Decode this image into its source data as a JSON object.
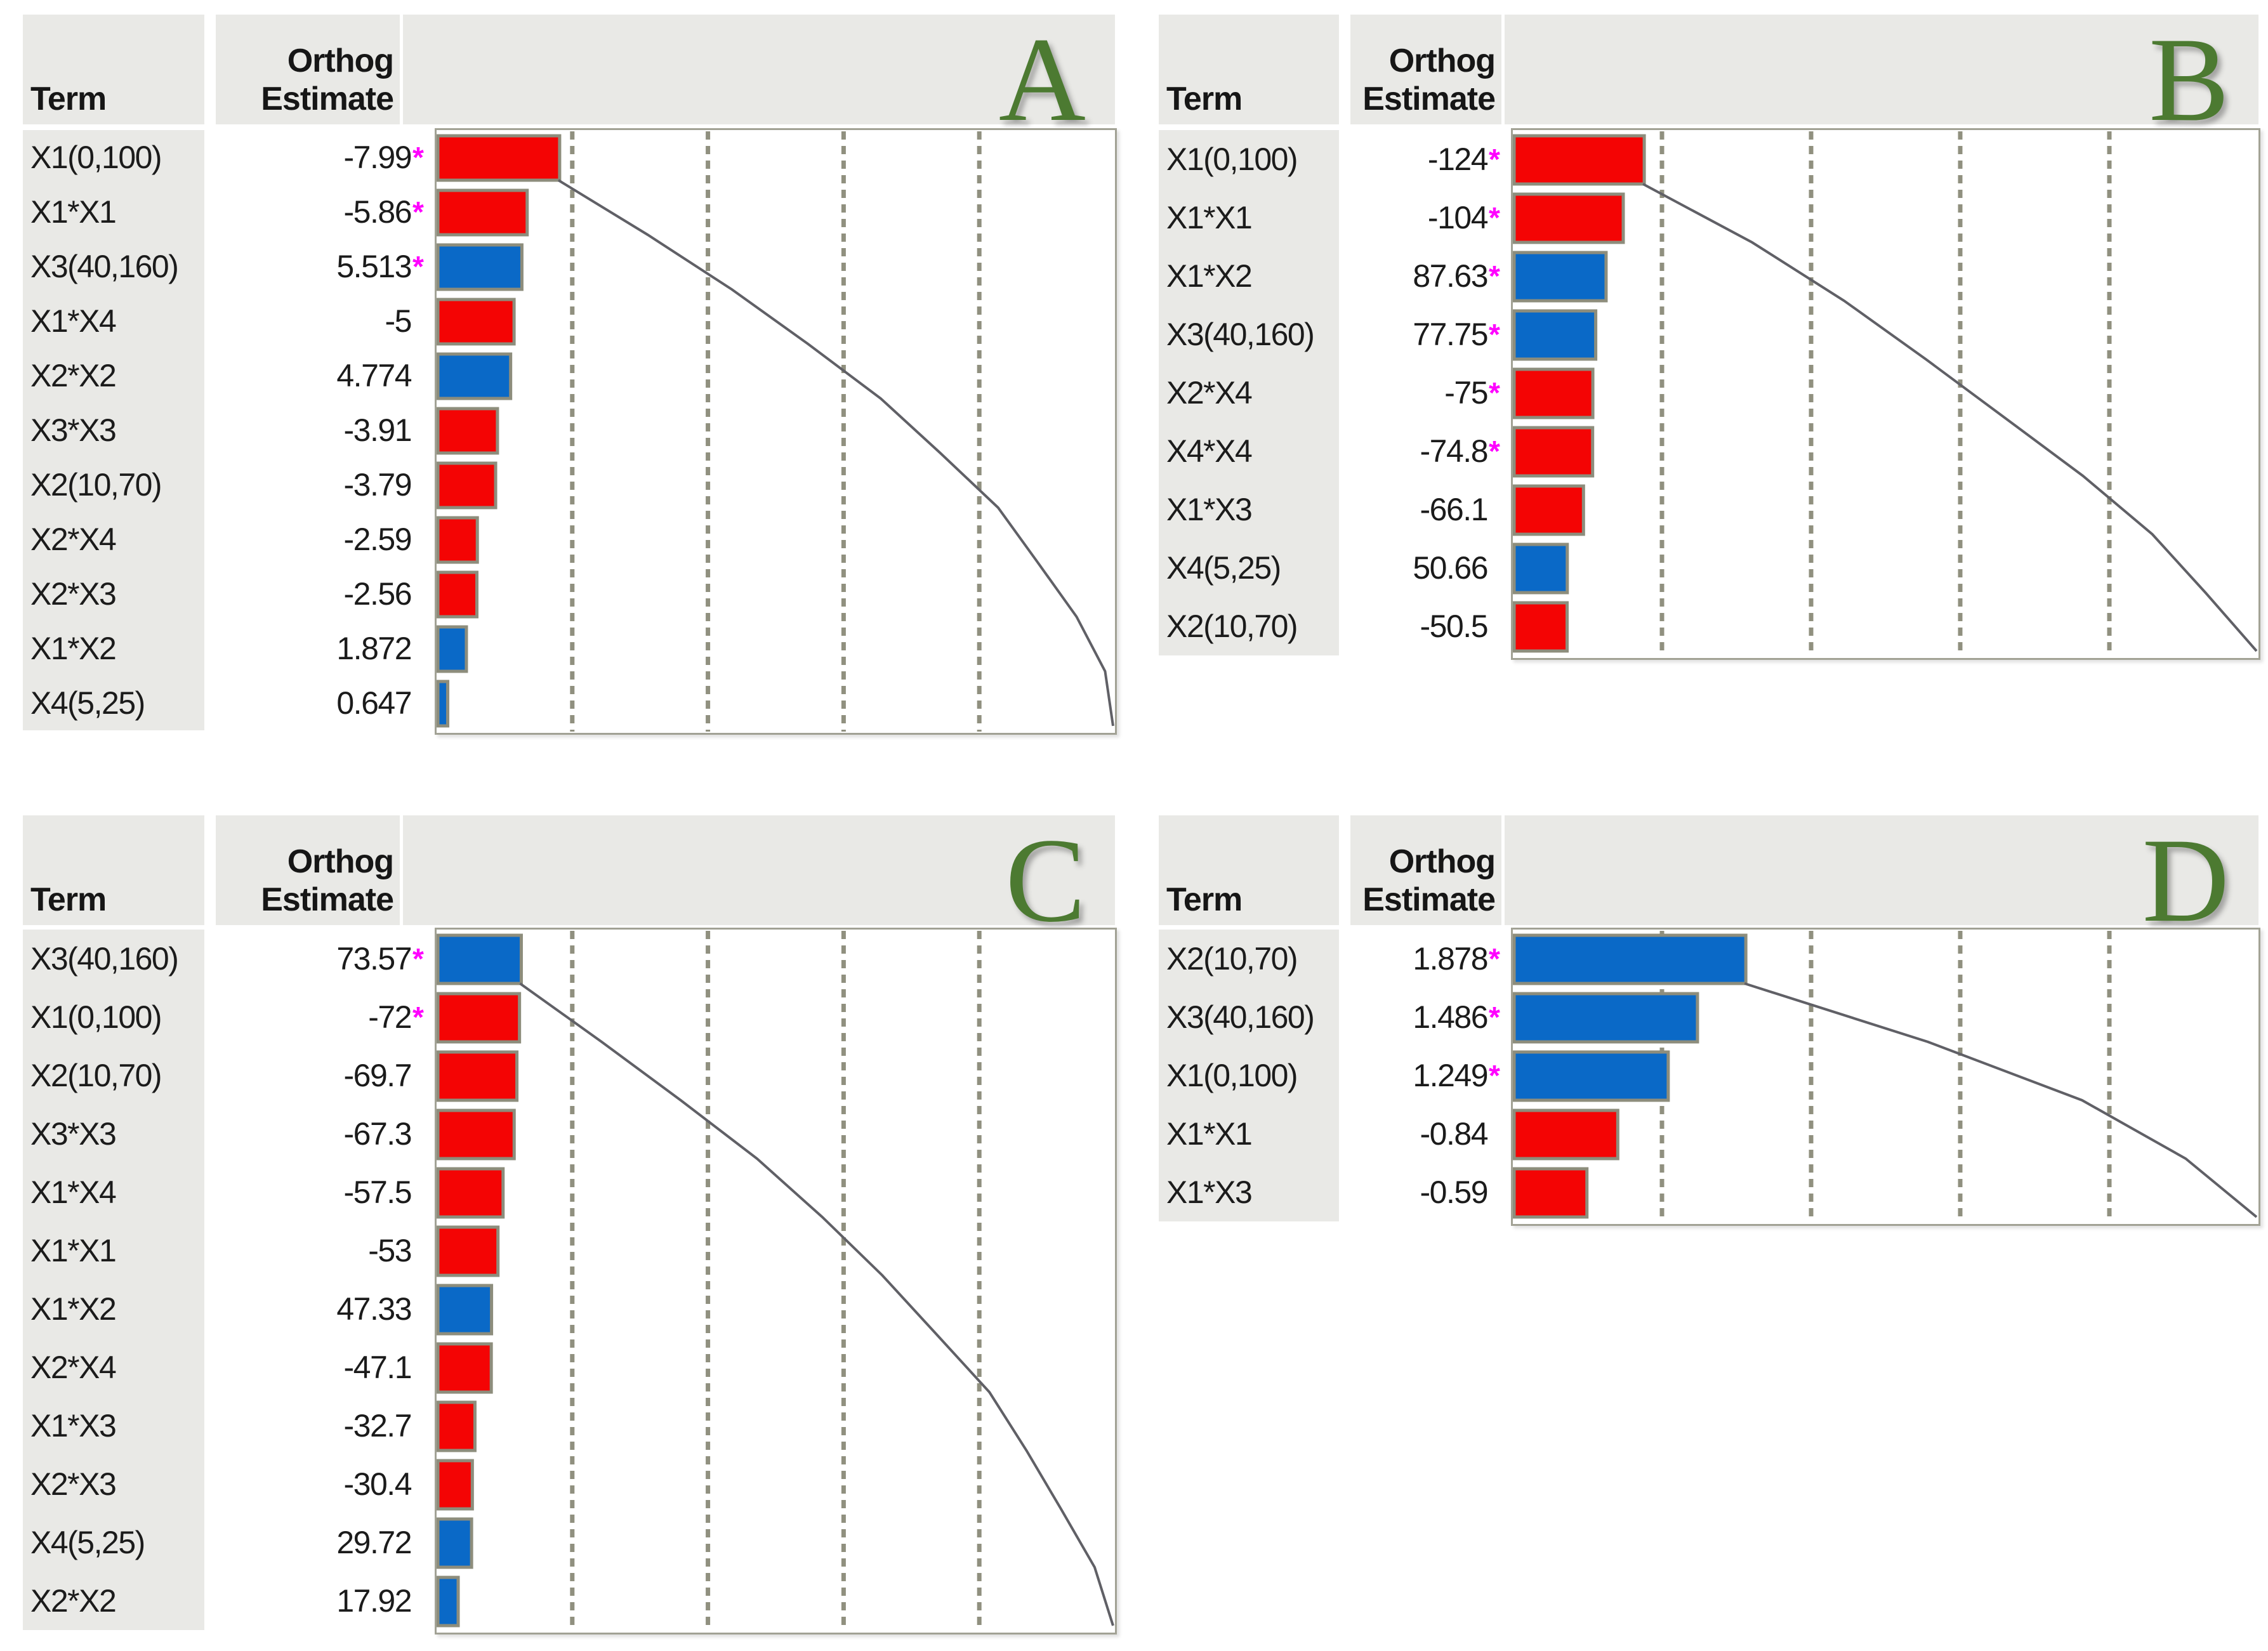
{
  "labels": {
    "term_header": "Term",
    "estimate_header_line1": "Orthog",
    "estimate_header_line2": "Estimate",
    "star": "*"
  },
  "colors": {
    "bar_negative": "#f40404",
    "bar_positive": "#0a69c7",
    "bar_border": "#8d8d7c",
    "significant_star": "#ff00ff",
    "panel_letter_green": "#4c7a31",
    "table_background": "#e9e9e6",
    "gridline": "#90907f",
    "cumulative_line": "#606066",
    "chart_frame": "#a2a295"
  },
  "chart_data": [
    {
      "panel_label": "A",
      "type": "bar",
      "orientation": "horizontal",
      "legend": "red bars = negative estimates, blue bars = positive estimates, magenta * = significant term",
      "cumulative_line": true,
      "x_axis": {
        "min_pct": 0,
        "max_pct": 100,
        "gridlines_pct": [
          20,
          40,
          60,
          80
        ],
        "note": "bar length = |orthog estimate| / sum of |orthog estimates|"
      },
      "rows": [
        {
          "term": "X1(0,100)",
          "estimate": "-7.99",
          "value": -7.99,
          "significant": true
        },
        {
          "term": "X1*X1",
          "estimate": "-5.86",
          "value": -5.86,
          "significant": true
        },
        {
          "term": "X3(40,160)",
          "estimate": "5.513",
          "value": 5.513,
          "significant": true
        },
        {
          "term": "X1*X4",
          "estimate": "-5",
          "value": -5,
          "significant": false
        },
        {
          "term": "X2*X2",
          "estimate": "4.774",
          "value": 4.774,
          "significant": false
        },
        {
          "term": "X3*X3",
          "estimate": "-3.91",
          "value": -3.91,
          "significant": false
        },
        {
          "term": "X2(10,70)",
          "estimate": "-3.79",
          "value": -3.79,
          "significant": false
        },
        {
          "term": "X2*X4",
          "estimate": "-2.59",
          "value": -2.59,
          "significant": false
        },
        {
          "term": "X2*X3",
          "estimate": "-2.56",
          "value": -2.56,
          "significant": false
        },
        {
          "term": "X1*X2",
          "estimate": "1.872",
          "value": 1.872,
          "significant": false
        },
        {
          "term": "X4(5,25)",
          "estimate": "0.647",
          "value": 0.647,
          "significant": false
        }
      ]
    },
    {
      "panel_label": "B",
      "type": "bar",
      "orientation": "horizontal",
      "legend": "red bars = negative estimates, blue bars = positive estimates, magenta * = significant term",
      "cumulative_line": true,
      "x_axis": {
        "min_pct": 0,
        "max_pct": 100,
        "gridlines_pct": [
          20,
          40,
          60,
          80
        ],
        "note": "bar length = |orthog estimate| / sum of |orthog estimates|"
      },
      "rows": [
        {
          "term": "X1(0,100)",
          "estimate": "-124",
          "value": -124,
          "significant": true
        },
        {
          "term": "X1*X1",
          "estimate": "-104",
          "value": -104,
          "significant": true
        },
        {
          "term": "X1*X2",
          "estimate": "87.63",
          "value": 87.63,
          "significant": true
        },
        {
          "term": "X3(40,160)",
          "estimate": "77.75",
          "value": 77.75,
          "significant": true
        },
        {
          "term": "X2*X4",
          "estimate": "-75",
          "value": -75,
          "significant": true
        },
        {
          "term": "X4*X4",
          "estimate": "-74.8",
          "value": -74.8,
          "significant": true
        },
        {
          "term": "X1*X3",
          "estimate": "-66.1",
          "value": -66.1,
          "significant": false
        },
        {
          "term": "X4(5,25)",
          "estimate": "50.66",
          "value": 50.66,
          "significant": false
        },
        {
          "term": "X2(10,70)",
          "estimate": "-50.5",
          "value": -50.5,
          "significant": false
        }
      ]
    },
    {
      "panel_label": "C",
      "type": "bar",
      "orientation": "horizontal",
      "legend": "red bars = negative estimates, blue bars = positive estimates, magenta * = significant term",
      "cumulative_line": true,
      "x_axis": {
        "min_pct": 0,
        "max_pct": 100,
        "gridlines_pct": [
          20,
          40,
          60,
          80
        ],
        "note": "bar length = |orthog estimate| / sum of |orthog estimates|"
      },
      "rows": [
        {
          "term": "X3(40,160)",
          "estimate": "73.57",
          "value": 73.57,
          "significant": true
        },
        {
          "term": "X1(0,100)",
          "estimate": "-72",
          "value": -72,
          "significant": true
        },
        {
          "term": "X2(10,70)",
          "estimate": "-69.7",
          "value": -69.7,
          "significant": false
        },
        {
          "term": "X3*X3",
          "estimate": "-67.3",
          "value": -67.3,
          "significant": false
        },
        {
          "term": "X1*X4",
          "estimate": "-57.5",
          "value": -57.5,
          "significant": false
        },
        {
          "term": "X1*X1",
          "estimate": "-53",
          "value": -53,
          "significant": false
        },
        {
          "term": "X1*X2",
          "estimate": "47.33",
          "value": 47.33,
          "significant": false
        },
        {
          "term": "X2*X4",
          "estimate": "-47.1",
          "value": -47.1,
          "significant": false
        },
        {
          "term": "X1*X3",
          "estimate": "-32.7",
          "value": -32.7,
          "significant": false
        },
        {
          "term": "X2*X3",
          "estimate": "-30.4",
          "value": -30.4,
          "significant": false
        },
        {
          "term": "X4(5,25)",
          "estimate": "29.72",
          "value": 29.72,
          "significant": false
        },
        {
          "term": "X2*X2",
          "estimate": "17.92",
          "value": 17.92,
          "significant": false
        }
      ]
    },
    {
      "panel_label": "D",
      "type": "bar",
      "orientation": "horizontal",
      "legend": "red bars = negative estimates, blue bars = positive estimates, magenta * = significant term",
      "cumulative_line": true,
      "x_axis": {
        "min_pct": 0,
        "max_pct": 100,
        "gridlines_pct": [
          20,
          40,
          60,
          80
        ],
        "note": "bar length = |orthog estimate| / sum of |orthog estimates|"
      },
      "rows": [
        {
          "term": "X2(10,70)",
          "estimate": "1.878",
          "value": 1.878,
          "significant": true
        },
        {
          "term": "X3(40,160)",
          "estimate": "1.486",
          "value": 1.486,
          "significant": true
        },
        {
          "term": "X1(0,100)",
          "estimate": "1.249",
          "value": 1.249,
          "significant": true
        },
        {
          "term": "X1*X1",
          "estimate": "-0.84",
          "value": -0.84,
          "significant": false
        },
        {
          "term": "X1*X3",
          "estimate": "-0.59",
          "value": -0.59,
          "significant": false
        }
      ]
    }
  ]
}
